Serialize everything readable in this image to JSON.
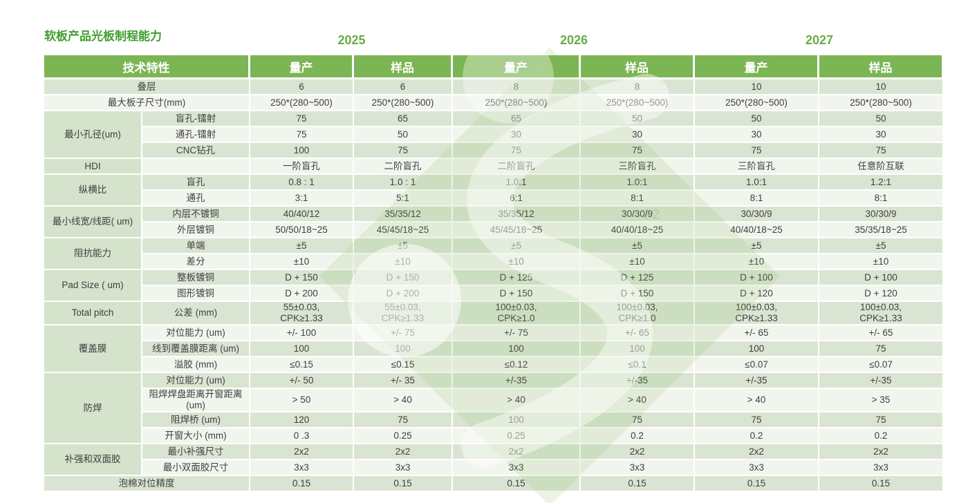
{
  "title": "软板产品光板制程能力",
  "years": [
    "2025",
    "2026",
    "2027"
  ],
  "header": {
    "feature": "技术特性",
    "subs": [
      "量产",
      "样品",
      "量产",
      "样品",
      "量产",
      "样品"
    ]
  },
  "colors": {
    "header_green": "#7cb553",
    "title_green": "#3f9f2e",
    "year_green": "#68ad46",
    "stripe_dark": "#d9e5d2",
    "stripe_light": "#f2f5ee",
    "group_green": "#d5e3cc",
    "text_gray": "#3e3e3e"
  },
  "watermark": {
    "name": "logo-watermark",
    "ghost_text": "92"
  },
  "table": {
    "sections": [
      {
        "type": "full",
        "label": "叠层",
        "values": [
          "6",
          "6",
          "8",
          "8",
          "10",
          "10"
        ]
      },
      {
        "type": "full",
        "label": "最大板子尺寸(mm)",
        "values": [
          "250*(280~500)",
          "250*(280~500)",
          "250*(280~500)",
          "250*(280~500)",
          "250*(280~500)",
          "250*(280~500)"
        ]
      },
      {
        "type": "group",
        "label": "最小孔径(um)",
        "rows": [
          {
            "label": "盲孔-镭射",
            "values": [
              "75",
              "65",
              "65",
              "50",
              "50",
              "50"
            ]
          },
          {
            "label": "通孔-镭射",
            "values": [
              "75",
              "50",
              "30",
              "30",
              "30",
              "30"
            ]
          },
          {
            "label": "CNC钻孔",
            "values": [
              "100",
              "75",
              "75",
              "75",
              "75",
              "75"
            ]
          }
        ]
      },
      {
        "type": "group",
        "label": "HDI",
        "rows": [
          {
            "label": "",
            "values": [
              "一阶盲孔",
              "二阶盲孔",
              "二阶盲孔",
              "三阶盲孔",
              "三阶盲孔",
              "任意阶互联"
            ]
          }
        ]
      },
      {
        "type": "group",
        "label": "纵横比",
        "rows": [
          {
            "label": "盲孔",
            "values": [
              "0.8 : 1",
              "1.0 : 1",
              "1.0:1",
              "1.0:1",
              "1.0:1",
              "1.2:1"
            ]
          },
          {
            "label": "通孔",
            "values": [
              "3:1",
              "5:1",
              "6:1",
              "8:1",
              "8:1",
              "8:1"
            ]
          }
        ]
      },
      {
        "type": "group",
        "label": "最小线宽/线距( um)",
        "rows": [
          {
            "label": "内层不镀铜",
            "values": [
              "40/40/12",
              "35/35/12",
              "35/35/12",
              "30/30/9",
              "30/30/9",
              "30/30/9"
            ]
          },
          {
            "label": "外层镀铜",
            "values": [
              "50/50/18~25",
              "45/45/18~25",
              "45/45/18~25",
              "40/40/18~25",
              "40/40/18~25",
              "35/35/18~25"
            ]
          }
        ]
      },
      {
        "type": "group",
        "label": "阻抗能力",
        "rows": [
          {
            "label": "单端",
            "values": [
              "±5",
              "±5",
              "±5",
              "±5",
              "±5",
              "±5"
            ]
          },
          {
            "label": "差分",
            "values": [
              "±10",
              "±10",
              "±10",
              "±10",
              "±10",
              "±10"
            ]
          }
        ]
      },
      {
        "type": "group",
        "label": "Pad Size ( um)",
        "rows": [
          {
            "label": "整板镀铜",
            "values": [
              "D + 150",
              "D + 150",
              "D + 125",
              "D + 125",
              "D + 100",
              "D + 100"
            ]
          },
          {
            "label": "图形镀铜",
            "values": [
              "D + 200",
              "D + 200",
              "D + 150",
              "D + 150",
              "D + 120",
              "D + 120"
            ]
          }
        ]
      },
      {
        "type": "group",
        "label": "Total pitch",
        "rows": [
          {
            "label": "公差 (mm)",
            "tall": true,
            "values": [
              "55±0.03,\nCPK≥1.33",
              "55±0.03,\nCPK≥1.33",
              "100±0.03,\nCPK≥1.0",
              "100±0.03,\nCPK≥1.0",
              "100±0.03,\nCPK≥1.33",
              "100±0.03,\nCPK≥1.33"
            ]
          }
        ]
      },
      {
        "type": "group",
        "label": "覆盖膜",
        "rows": [
          {
            "label": "对位能力 (um)",
            "values": [
              "+/- 100",
              "+/- 75",
              "+/- 75",
              "+/- 65",
              "+/- 65",
              "+/- 65"
            ]
          },
          {
            "label": "线到覆盖膜距离 (um)",
            "values": [
              "100",
              "100",
              "100",
              "100",
              "100",
              "75"
            ]
          },
          {
            "label": "溢胶  (mm)",
            "values": [
              "≤0.15",
              "≤0.15",
              "≤0.12",
              "≤0.1",
              "≤0.07",
              "≤0.07"
            ]
          }
        ]
      },
      {
        "type": "group",
        "label": "防焊",
        "rows": [
          {
            "label": "对位能力 (um)",
            "values": [
              "+/- 50",
              "+/- 35",
              "+/-35",
              "+/-35",
              "+/-35",
              "+/-35"
            ]
          },
          {
            "label": "阻焊焊盘距离开窗距离 (um)",
            "tall": true,
            "values": [
              "> 50",
              "> 40",
              "> 40",
              "> 40",
              "> 40",
              "> 35"
            ]
          },
          {
            "label": "阻焊桥 (um)",
            "values": [
              "120",
              "75",
              "100",
              "75",
              "75",
              "75"
            ]
          },
          {
            "label": "开窗大小  (mm)",
            "values": [
              "0 .3",
              "0.25",
              "0.25",
              "0.2",
              "0.2",
              "0.2"
            ]
          }
        ]
      },
      {
        "type": "group",
        "label": "补强和双面胶",
        "rows": [
          {
            "label": "最小补强尺寸",
            "values": [
              "2x2",
              "2x2",
              "2x2",
              "2x2",
              "2x2",
              "2x2"
            ]
          },
          {
            "label": "最小双面胶尺寸",
            "values": [
              "3x3",
              "3x3",
              "3x3",
              "3x3",
              "3x3",
              "3x3"
            ]
          }
        ]
      },
      {
        "type": "full",
        "label": "泡棉对位精度",
        "values": [
          "0.15",
          "0.15",
          "0.15",
          "0.15",
          "0.15",
          "0.15"
        ]
      }
    ]
  }
}
